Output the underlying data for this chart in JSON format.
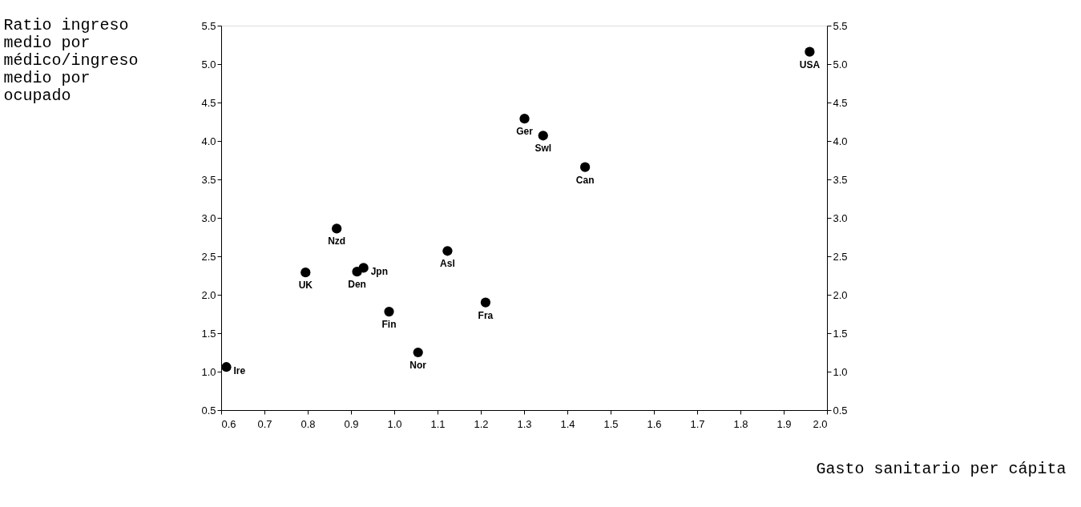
{
  "chart_data": {
    "type": "scatter",
    "xlabel": "Gasto sanitario per cápita",
    "ylabel": "Ratio ingreso medio por médico/ingreso medio por ocupado",
    "x": [
      0.612,
      0.795,
      0.867,
      0.914,
      0.929,
      0.988,
      1.055,
      1.123,
      1.211,
      1.301,
      1.344,
      1.441,
      1.96
    ],
    "series": [
      {
        "color": "#000000",
        "values": [
          1.06,
          2.29,
          2.86,
          2.3,
          2.35,
          1.78,
          1.25,
          2.57,
          1.9,
          4.29,
          4.07,
          3.66,
          5.16
        ]
      }
    ],
    "annotations": [
      {
        "text": "Ire",
        "x": 0.612,
        "y": 1.06
      },
      {
        "text": "UK",
        "x": 0.795,
        "y": 2.29
      },
      {
        "text": "Nzd",
        "x": 0.867,
        "y": 2.86
      },
      {
        "text": "Den",
        "x": 0.914,
        "y": 2.3
      },
      {
        "text": "Jpn",
        "x": 0.929,
        "y": 2.35
      },
      {
        "text": "Fin",
        "x": 0.988,
        "y": 1.78
      },
      {
        "text": "Nor",
        "x": 1.055,
        "y": 1.25
      },
      {
        "text": "Asl",
        "x": 1.123,
        "y": 2.57
      },
      {
        "text": "Fra",
        "x": 1.211,
        "y": 1.9
      },
      {
        "text": "Ger",
        "x": 1.301,
        "y": 4.29
      },
      {
        "text": "Swl",
        "x": 1.344,
        "y": 4.07
      },
      {
        "text": "Can",
        "x": 1.441,
        "y": 3.66
      },
      {
        "text": "USA",
        "x": 1.96,
        "y": 5.16
      }
    ],
    "marker": "circle",
    "grid": false,
    "xlim": [
      0.6,
      2.0
    ],
    "xticks": [
      0.6,
      0.7,
      0.8,
      0.9,
      {
        "value": 1,
        "label": "1.0"
      },
      1.1,
      1.2,
      1.3,
      1.4,
      1.5,
      1.6,
      1.7,
      1.8,
      1.9,
      {
        "value": 2,
        "label": "2.0"
      }
    ],
    "ylim": [
      0.5,
      5.5
    ],
    "yticks": [
      0.5,
      {
        "value": 1,
        "label": "1.0"
      },
      1.5,
      {
        "value": 2,
        "label": "2.0"
      },
      2.5,
      {
        "value": 3,
        "label": "3.0"
      },
      3.5,
      {
        "value": 4,
        "label": "4.0"
      },
      4.5,
      {
        "value": 5,
        "label": "5.0"
      },
      5.5
    ],
    "y2lim": [
      0.5,
      5.5
    ],
    "y2ticks": [
      0.5,
      {
        "value": 1,
        "label": "1.0"
      },
      1.5,
      {
        "value": 2,
        "label": "2.0"
      },
      2.5,
      {
        "value": 3,
        "label": "3.0"
      },
      3.5,
      {
        "value": 4,
        "label": "4.0"
      },
      4.5,
      {
        "value": 5,
        "label": "5.0"
      },
      5.5
    ]
  }
}
